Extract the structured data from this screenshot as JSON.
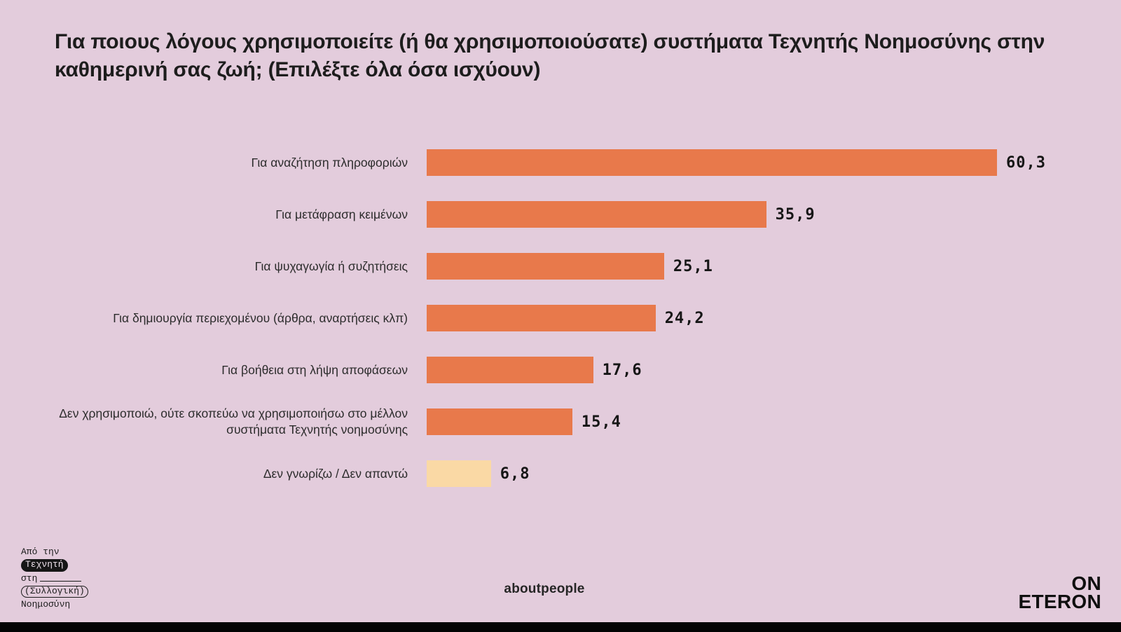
{
  "title": "Για ποιους λόγους χρησιμοποιείτε (ή θα χρησιμοποιούσατε) συστήματα Τεχνητής Νοημοσύνης στην καθημερινή σας ζωή; (Επιλέξτε όλα όσα ισχύουν)",
  "chart_data": {
    "type": "bar",
    "orientation": "horizontal",
    "categories": [
      "Για αναζήτηση πληροφοριών",
      "Για μετάφραση κειμένων",
      "Για ψυχαγωγία ή συζητήσεις",
      "Για δημιουργία περιεχομένου (άρθρα, αναρτήσεις κλπ)",
      "Για βοήθεια στη λήψη αποφάσεων",
      "Δεν χρησιμοποιώ, ούτε σκοπεύω να χρησιμοποιήσω στο μέλλον συστήματα Τεχνητής νοημοσύνης",
      "Δεν γνωρίζω / Δεν απαντώ"
    ],
    "values": [
      60.3,
      35.9,
      25.1,
      24.2,
      17.6,
      15.4,
      6.8
    ],
    "value_labels": [
      "60,3",
      "35,9",
      "25,1",
      "24,2",
      "17,6",
      "15,4",
      "6,8"
    ],
    "bar_colors": [
      "#E8794B",
      "#E8794B",
      "#E8794B",
      "#E8794B",
      "#E8794B",
      "#E8794B",
      "#FAD9A5"
    ],
    "xlim": [
      0,
      63
    ],
    "grid": false,
    "legend": false,
    "data_labels_position": "outside-end"
  },
  "footer": {
    "project_logo": {
      "line1": "Από την",
      "line2": "Τεχνητή",
      "line3": "στη",
      "line4": "(Συλλογική)",
      "line5": "Νοημοσύνη"
    },
    "credit": "aboutpeople",
    "brand": {
      "line1": "ON",
      "line2": "ETERON"
    }
  },
  "colors": {
    "background": "#E3CCDC",
    "bar_orange": "#E8794B",
    "bar_cream": "#FAD9A5",
    "title_text": "#1D1D1D",
    "label_text": "#2C2C2C",
    "bottom_strip": "#030303"
  }
}
